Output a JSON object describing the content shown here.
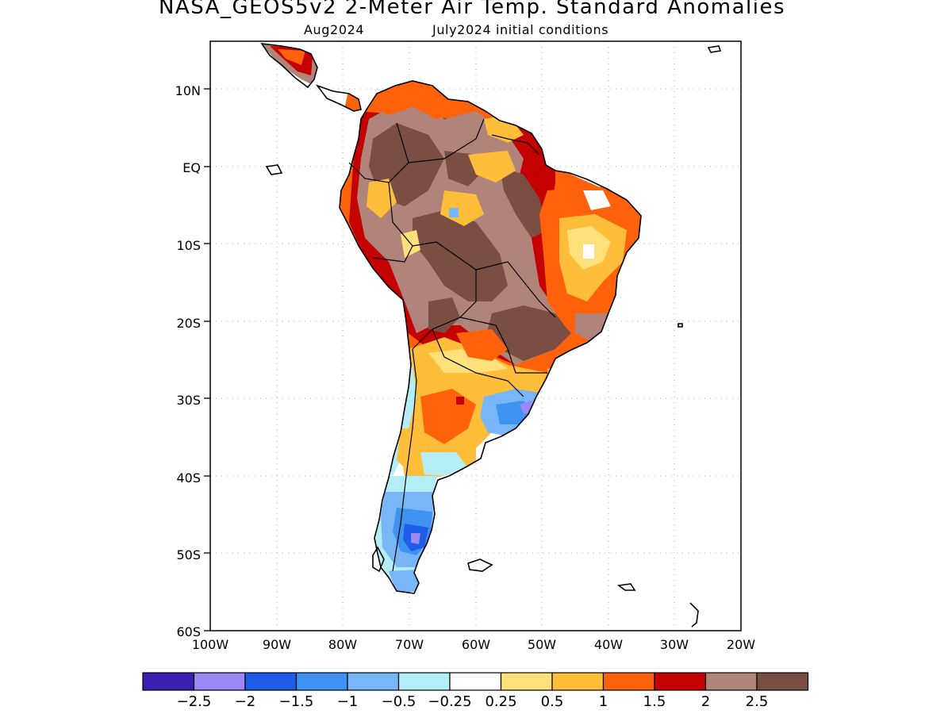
{
  "title": "NASA_GEOS5v2 2-Meter Air Temp. Standard Anomalies",
  "subtitle_left": "Aug2024",
  "subtitle_right": "July2024 initial conditions",
  "lat_ticks": [
    "10N",
    "EQ",
    "10S",
    "20S",
    "30S",
    "40S",
    "50S",
    "60S"
  ],
  "lon_ticks": [
    "100W",
    "90W",
    "80W",
    "70W",
    "60W",
    "50W",
    "40W",
    "30W",
    "20W"
  ],
  "colorbar": {
    "colors": [
      "#3a1fb0",
      "#9b87f5",
      "#1f5de6",
      "#3e92f0",
      "#78b6f7",
      "#b3eef7",
      "#ffffff",
      "#ffe07a",
      "#ffbe3a",
      "#ff620a",
      "#c40000",
      "#b0847a",
      "#7a4e42"
    ],
    "labels": [
      "-2.5",
      "-2",
      "-1.5",
      "-1",
      "-0.5",
      "-0.25",
      "0.25",
      "0.5",
      "1",
      "1.5",
      "2",
      "2.5"
    ]
  },
  "legend_colors": {
    "ocean": "#ffffff",
    "coast": "#000000",
    "grid": "#aaaaaa"
  }
}
